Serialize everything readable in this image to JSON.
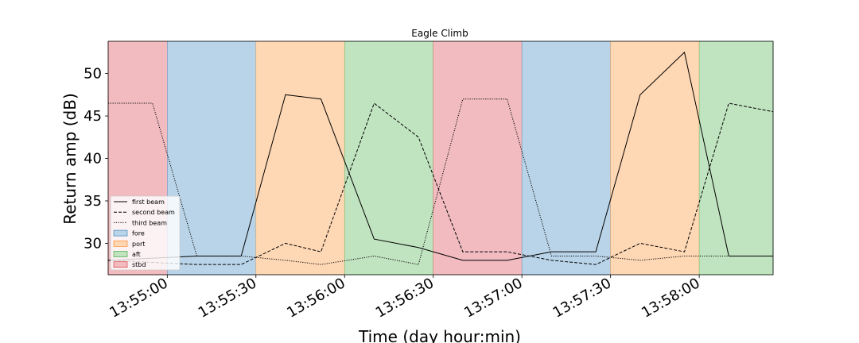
{
  "chart_data": {
    "type": "line",
    "title": "Eagle Climb",
    "xlabel": "Time (day hour:min)",
    "ylabel": "Return amp (dB)",
    "xlim": [
      "13:54:40",
      "13:58:25"
    ],
    "ylim": [
      26.3,
      53.8
    ],
    "yticks": [
      30,
      35,
      40,
      45,
      50
    ],
    "xticks": [
      "13:55:00",
      "13:55:30",
      "13:56:00",
      "13:56:30",
      "13:57:00",
      "13:57:30",
      "13:58:00"
    ],
    "grid": false,
    "legend_position": "lower-left",
    "bands": [
      {
        "name": "stbd",
        "start": "13:54:40",
        "end": "13:55:00"
      },
      {
        "name": "fore",
        "start": "13:55:00",
        "end": "13:55:30"
      },
      {
        "name": "port",
        "start": "13:55:30",
        "end": "13:56:00"
      },
      {
        "name": "aft",
        "start": "13:56:00",
        "end": "13:56:30"
      },
      {
        "name": "stbd",
        "start": "13:56:30",
        "end": "13:57:00"
      },
      {
        "name": "fore",
        "start": "13:57:00",
        "end": "13:57:30"
      },
      {
        "name": "port",
        "start": "13:57:30",
        "end": "13:58:00"
      },
      {
        "name": "aft",
        "start": "13:58:00",
        "end": "13:58:25"
      }
    ],
    "band_colors": {
      "fore": "#b9d4e8",
      "port": "#fed7b4",
      "aft": "#c0e3c0",
      "stbd": "#f1bbc0"
    },
    "band_edge_colors": {
      "fore": "#1f77b4",
      "port": "#ff7f0e",
      "aft": "#2ca02c",
      "stbd": "#d62728"
    },
    "series": [
      {
        "name": "first beam",
        "style": "solid",
        "x": [
          "13:54:40",
          "13:55:10",
          "13:55:25",
          "13:55:40",
          "13:55:52",
          "13:56:10",
          "13:56:25",
          "13:56:40",
          "13:56:55",
          "13:57:10",
          "13:57:25",
          "13:57:40",
          "13:57:55",
          "13:58:10",
          "13:58:25"
        ],
        "y": [
          28.0,
          28.5,
          28.5,
          47.5,
          47.0,
          30.5,
          29.5,
          28.0,
          28.0,
          29.0,
          29.0,
          47.5,
          52.5,
          28.5,
          28.5
        ]
      },
      {
        "name": "second beam",
        "style": "dashed",
        "x": [
          "13:54:40",
          "13:55:10",
          "13:55:25",
          "13:55:40",
          "13:55:52",
          "13:56:10",
          "13:56:25",
          "13:56:40",
          "13:56:55",
          "13:57:10",
          "13:57:25",
          "13:57:40",
          "13:57:55",
          "13:58:10",
          "13:58:25"
        ],
        "y": [
          28.0,
          27.5,
          27.5,
          30.0,
          29.0,
          46.5,
          42.5,
          29.0,
          29.0,
          28.0,
          27.5,
          30.0,
          29.0,
          46.5,
          45.5
        ]
      },
      {
        "name": "third beam",
        "style": "dotted",
        "x": [
          "13:54:40",
          "13:54:55",
          "13:55:10",
          "13:55:25",
          "13:55:40",
          "13:55:52",
          "13:56:10",
          "13:56:25",
          "13:56:40",
          "13:56:55",
          "13:57:10",
          "13:57:25",
          "13:57:40",
          "13:57:55",
          "13:58:10",
          "13:58:25"
        ],
        "y": [
          46.5,
          46.5,
          28.5,
          28.5,
          28.0,
          27.5,
          28.5,
          27.5,
          47.0,
          47.0,
          28.5,
          28.5,
          28.0,
          28.5,
          28.5,
          28.5
        ]
      }
    ],
    "legend": [
      "first beam",
      "second beam",
      "third beam",
      "fore",
      "port",
      "aft",
      "stbd"
    ]
  }
}
